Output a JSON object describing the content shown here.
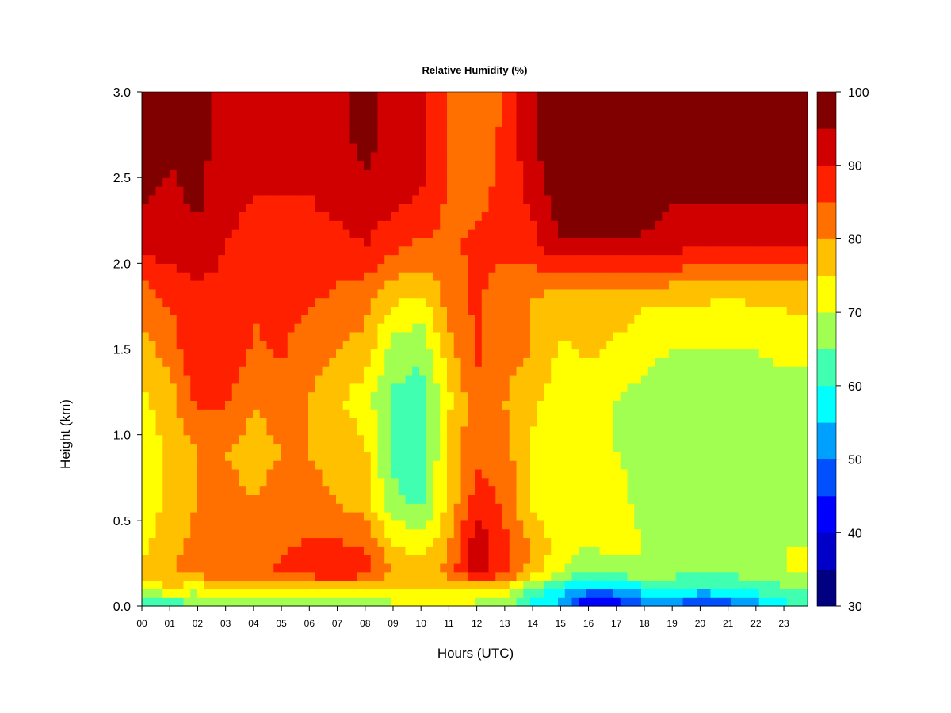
{
  "chart_data": {
    "type": "heatmap",
    "title": "Relative Humidity (%)",
    "xlabel": "Hours (UTC)",
    "ylabel": "Height (km)",
    "x_ticks": [
      "00",
      "01",
      "02",
      "03",
      "04",
      "05",
      "06",
      "07",
      "08",
      "09",
      "10",
      "11",
      "12",
      "13",
      "14",
      "15",
      "16",
      "17",
      "18",
      "19",
      "20",
      "21",
      "22",
      "23"
    ],
    "xlim": [
      0,
      23.85
    ],
    "ylim": [
      0.0,
      3.0
    ],
    "y_ticks": [
      "0.0",
      "0.5",
      "1.0",
      "1.5",
      "2.0",
      "2.5",
      "3.0"
    ],
    "y_tick_values": [
      0.0,
      0.5,
      1.0,
      1.5,
      2.0,
      2.5,
      3.0
    ],
    "colorbar": {
      "range": [
        30,
        100
      ],
      "step": 5,
      "tick_labels": [
        "30",
        "40",
        "50",
        "60",
        "70",
        "80",
        "90",
        "100"
      ],
      "tick_values": [
        30,
        40,
        50,
        60,
        70,
        80,
        90,
        100
      ],
      "colors": [
        "#000080",
        "#0000C8",
        "#0000FF",
        "#0050FF",
        "#00A0FF",
        "#00FFFF",
        "#40FFB0",
        "#A0FF50",
        "#FFFF00",
        "#FFC000",
        "#FF7000",
        "#FF2000",
        "#D00000",
        "#800000"
      ]
    },
    "heights_km": [
      0.03,
      0.1,
      0.2,
      0.35,
      0.6,
      0.9,
      1.2,
      1.5,
      1.8,
      2.1,
      2.4,
      2.7,
      2.95
    ],
    "hours": [
      0,
      1,
      2,
      3,
      4,
      5,
      6,
      7,
      8,
      9,
      10,
      11,
      12,
      13,
      14,
      15,
      16,
      17,
      18,
      19,
      20,
      21,
      22,
      23
    ],
    "rh_percent": [
      [
        64,
        64,
        66,
        67,
        70,
        68,
        68,
        68,
        69,
        70,
        70,
        71,
        70,
        68,
        60,
        55,
        42,
        44,
        50,
        52,
        48,
        50,
        55,
        60
      ],
      [
        72,
        74,
        72,
        75,
        76,
        74,
        74,
        76,
        73,
        74,
        75,
        73,
        74,
        72,
        64,
        58,
        52,
        54,
        58,
        60,
        58,
        60,
        62,
        64
      ],
      [
        76,
        80,
        82,
        84,
        82,
        86,
        88,
        90,
        88,
        80,
        78,
        82,
        94,
        86,
        78,
        70,
        66,
        68,
        68,
        67,
        66,
        66,
        68,
        70
      ],
      [
        74,
        78,
        82,
        84,
        82,
        84,
        86,
        86,
        84,
        76,
        72,
        80,
        94,
        86,
        80,
        72,
        70,
        72,
        70,
        68,
        68,
        68,
        70,
        70
      ],
      [
        72,
        76,
        80,
        82,
        80,
        82,
        82,
        80,
        78,
        66,
        64,
        76,
        88,
        84,
        74,
        70,
        70,
        72,
        68,
        66,
        66,
        66,
        66,
        66
      ],
      [
        72,
        76,
        80,
        80,
        78,
        80,
        80,
        78,
        76,
        64,
        62,
        76,
        84,
        82,
        74,
        70,
        70,
        70,
        68,
        66,
        66,
        66,
        66,
        66
      ],
      [
        74,
        78,
        86,
        86,
        80,
        82,
        80,
        76,
        72,
        64,
        62,
        74,
        84,
        80,
        76,
        72,
        72,
        70,
        68,
        66,
        66,
        66,
        66,
        66
      ],
      [
        78,
        82,
        90,
        90,
        84,
        86,
        82,
        80,
        78,
        68,
        66,
        78,
        86,
        82,
        80,
        74,
        76,
        74,
        72,
        70,
        70,
        70,
        70,
        72
      ],
      [
        82,
        86,
        88,
        88,
        86,
        86,
        86,
        84,
        82,
        76,
        74,
        82,
        86,
        82,
        80,
        78,
        78,
        78,
        76,
        76,
        76,
        74,
        76,
        76
      ],
      [
        92,
        92,
        94,
        90,
        88,
        88,
        88,
        88,
        90,
        86,
        84,
        84,
        86,
        86,
        88,
        94,
        94,
        94,
        94,
        92,
        90,
        90,
        90,
        90
      ],
      [
        96,
        94,
        96,
        92,
        90,
        90,
        90,
        92,
        94,
        92,
        90,
        84,
        84,
        86,
        92,
        98,
        98,
        98,
        98,
        96,
        96,
        96,
        96,
        96
      ],
      [
        98,
        96,
        96,
        94,
        92,
        92,
        92,
        94,
        96,
        94,
        92,
        84,
        82,
        86,
        94,
        100,
        100,
        100,
        100,
        98,
        98,
        98,
        98,
        98
      ],
      [
        98,
        96,
        96,
        94,
        92,
        92,
        92,
        94,
        96,
        94,
        92,
        84,
        80,
        86,
        94,
        100,
        100,
        100,
        100,
        98,
        98,
        98,
        98,
        98
      ]
    ]
  }
}
